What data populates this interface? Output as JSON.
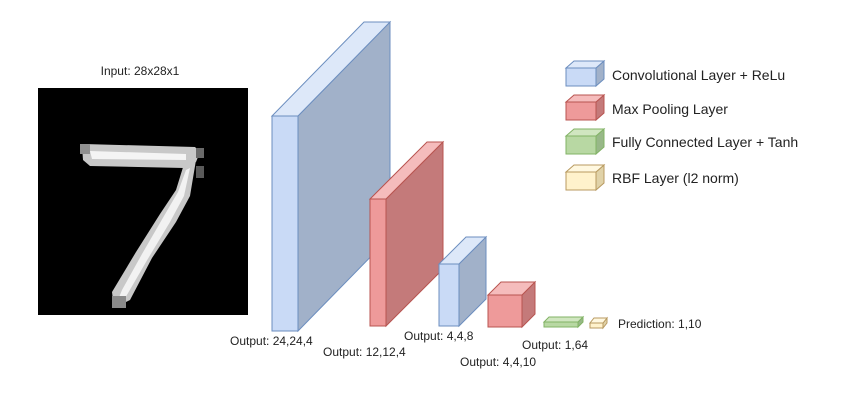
{
  "input": {
    "label": "Input: 28x28x1",
    "digit_icon": "handwritten-digit-7-image"
  },
  "layers": [
    {
      "id": "conv1",
      "type": "conv",
      "output_label": "Output: 24,24,4"
    },
    {
      "id": "pool1",
      "type": "pool",
      "output_label": "Output: 12,12,4"
    },
    {
      "id": "conv2",
      "type": "conv",
      "output_label": "Output: 4,4,8"
    },
    {
      "id": "pool2",
      "type": "pool",
      "output_label": "Output: 4,4,10"
    },
    {
      "id": "fc1",
      "type": "fc",
      "output_label": "Output: 1,64"
    },
    {
      "id": "rbf",
      "type": "rbf",
      "output_label": "Prediction: 1,10"
    }
  ],
  "legend": [
    {
      "type": "conv",
      "label": "Convolutional Layer + ReLu"
    },
    {
      "type": "pool",
      "label": "Max Pooling Layer"
    },
    {
      "type": "fc",
      "label": "Fully Connected Layer + Tanh"
    },
    {
      "type": "rbf",
      "label": "RBF Layer (l2 norm)"
    }
  ],
  "colors": {
    "conv": {
      "front": "#c9daf6",
      "top": "#dde8f9",
      "side": "#a1b1c9",
      "stroke": "#6c8ebf"
    },
    "pool": {
      "front": "#ee9a9a",
      "top": "#f5bcbc",
      "side": "#c47a7a",
      "stroke": "#b85450"
    },
    "fc": {
      "front": "#b8d8a3",
      "top": "#d0e6c0",
      "side": "#98b888",
      "stroke": "#82b366"
    },
    "rbf": {
      "front": "#fff2cc",
      "top": "#fff8e0",
      "side": "#e0d2a8",
      "stroke": "#b89a60"
    },
    "input_bg": "#000000"
  }
}
